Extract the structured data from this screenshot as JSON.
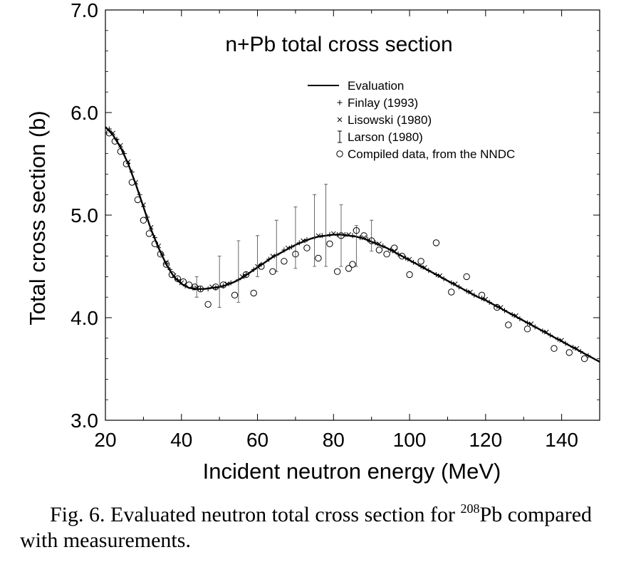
{
  "chart_data": {
    "type": "scatter",
    "title": "n+Pb total cross section",
    "xlabel": "Incident neutron energy (MeV)",
    "ylabel": "Total cross section (b)",
    "xlim": [
      20,
      150
    ],
    "ylim": [
      3.0,
      7.0
    ],
    "x_ticks": [
      "20",
      "40",
      "60",
      "80",
      "100",
      "120",
      "140"
    ],
    "y_ticks": [
      "3.0",
      "4.0",
      "5.0",
      "6.0",
      "7.0"
    ],
    "grid": false,
    "legend_position": "top-right",
    "series": [
      {
        "name": "Evaluation",
        "marker": "line",
        "x": [
          20,
          22,
          24,
          26,
          28,
          30,
          32,
          34,
          36,
          38,
          40,
          42,
          44,
          46,
          48,
          50,
          52,
          54,
          56,
          58,
          60,
          62,
          64,
          66,
          68,
          70,
          72,
          74,
          76,
          78,
          80,
          82,
          84,
          86,
          88,
          90,
          92,
          94,
          96,
          98,
          100,
          102,
          104,
          106,
          108,
          110,
          112,
          114,
          116,
          118,
          120,
          122,
          124,
          126,
          128,
          130,
          132,
          134,
          136,
          138,
          140,
          142,
          144,
          146,
          148,
          150
        ],
        "y": [
          5.86,
          5.78,
          5.66,
          5.5,
          5.3,
          5.08,
          4.86,
          4.68,
          4.52,
          4.4,
          4.33,
          4.29,
          4.28,
          4.28,
          4.29,
          4.3,
          4.32,
          4.35,
          4.39,
          4.44,
          4.49,
          4.54,
          4.59,
          4.63,
          4.67,
          4.71,
          4.74,
          4.77,
          4.79,
          4.8,
          4.81,
          4.81,
          4.8,
          4.79,
          4.77,
          4.74,
          4.71,
          4.68,
          4.64,
          4.6,
          4.56,
          4.52,
          4.48,
          4.44,
          4.4,
          4.36,
          4.32,
          4.28,
          4.24,
          4.2,
          4.17,
          4.13,
          4.09,
          4.05,
          4.01,
          3.97,
          3.93,
          3.89,
          3.85,
          3.81,
          3.77,
          3.73,
          3.69,
          3.65,
          3.61,
          3.57
        ]
      },
      {
        "name": "Finlay (1993)",
        "marker": "plus",
        "x": [
          21,
          23,
          25,
          27,
          29,
          31,
          33,
          35,
          37,
          39,
          41,
          43,
          45,
          47,
          49,
          51,
          53,
          55,
          57,
          59,
          61,
          63,
          65,
          67,
          69,
          71,
          73,
          75,
          77,
          79,
          81,
          83,
          85,
          87,
          89,
          91,
          93,
          95,
          97,
          99,
          101,
          103,
          105,
          107,
          109,
          111,
          113,
          115,
          117,
          119,
          121,
          123,
          125,
          127,
          129,
          131,
          133,
          135,
          137,
          139,
          141,
          143,
          145,
          147
        ],
        "y": [
          5.84,
          5.74,
          5.6,
          5.42,
          5.2,
          4.98,
          4.78,
          4.61,
          4.47,
          4.37,
          4.31,
          4.29,
          4.28,
          4.28,
          4.29,
          4.31,
          4.34,
          4.37,
          4.42,
          4.47,
          4.52,
          4.57,
          4.61,
          4.66,
          4.69,
          4.73,
          4.76,
          4.78,
          4.8,
          4.81,
          4.81,
          4.81,
          4.8,
          4.78,
          4.76,
          4.73,
          4.7,
          4.66,
          4.62,
          4.58,
          4.54,
          4.5,
          4.46,
          4.42,
          4.38,
          4.34,
          4.3,
          4.26,
          4.22,
          4.19,
          4.15,
          4.11,
          4.07,
          4.03,
          3.99,
          3.95,
          3.91,
          3.87,
          3.83,
          3.79,
          3.75,
          3.71,
          3.67,
          3.63
        ]
      },
      {
        "name": "Lisowski (1980)",
        "marker": "cross",
        "x": [
          22,
          24,
          26,
          28,
          30,
          32,
          34,
          36,
          38,
          40,
          44,
          48,
          52,
          56,
          60,
          64,
          68,
          72,
          76,
          80,
          84,
          88,
          92,
          96,
          100,
          104,
          108,
          112,
          116,
          120,
          124,
          128,
          132,
          136,
          140,
          144
        ],
        "y": [
          5.8,
          5.68,
          5.52,
          5.32,
          5.1,
          4.88,
          4.7,
          4.54,
          4.41,
          4.34,
          4.29,
          4.3,
          4.33,
          4.4,
          4.5,
          4.6,
          4.68,
          4.75,
          4.8,
          4.82,
          4.81,
          4.78,
          4.72,
          4.65,
          4.57,
          4.49,
          4.41,
          4.33,
          4.25,
          4.18,
          4.1,
          4.02,
          3.94,
          3.86,
          3.78,
          3.7
        ]
      },
      {
        "name": "Larson (1980)",
        "marker": "errorbar",
        "x": [
          44,
          50,
          55,
          60,
          65,
          70,
          75,
          78,
          82,
          86,
          90
        ],
        "y": [
          4.3,
          4.35,
          4.45,
          4.6,
          4.7,
          4.78,
          4.85,
          4.9,
          4.8,
          4.7,
          4.8
        ],
        "yerr": [
          0.1,
          0.25,
          0.3,
          0.2,
          0.25,
          0.3,
          0.35,
          0.4,
          0.3,
          0.2,
          0.15
        ]
      },
      {
        "name": "Compiled data, from the NNDC",
        "marker": "circle",
        "x": [
          21,
          22.5,
          24,
          25.5,
          27,
          28.5,
          30,
          31.5,
          33,
          34.5,
          36,
          37.5,
          39,
          40.5,
          42,
          43.5,
          45,
          47,
          49,
          51,
          54,
          57,
          59,
          61,
          64,
          67,
          70,
          73,
          76,
          79,
          81,
          82,
          84,
          85,
          86,
          88,
          90,
          92,
          94,
          96,
          98,
          100,
          103,
          107,
          111,
          115,
          119,
          123,
          126,
          131,
          138,
          142,
          146
        ],
        "y": [
          5.8,
          5.72,
          5.62,
          5.5,
          5.32,
          5.15,
          4.95,
          4.82,
          4.72,
          4.62,
          4.52,
          4.42,
          4.38,
          4.35,
          4.32,
          4.3,
          4.28,
          4.13,
          4.3,
          4.32,
          4.22,
          4.42,
          4.24,
          4.5,
          4.45,
          4.55,
          4.62,
          4.68,
          4.58,
          4.72,
          4.45,
          4.8,
          4.48,
          4.52,
          4.85,
          4.8,
          4.75,
          4.66,
          4.62,
          4.68,
          4.6,
          4.42,
          4.55,
          4.73,
          4.25,
          4.4,
          4.22,
          4.1,
          3.93,
          3.89,
          3.7,
          3.66,
          3.6
        ]
      }
    ]
  },
  "caption": {
    "prefix": "Fig. 6.  Evaluated neutron total cross section for ",
    "superscript": "208",
    "suffix": "Pb compared with measurements."
  }
}
